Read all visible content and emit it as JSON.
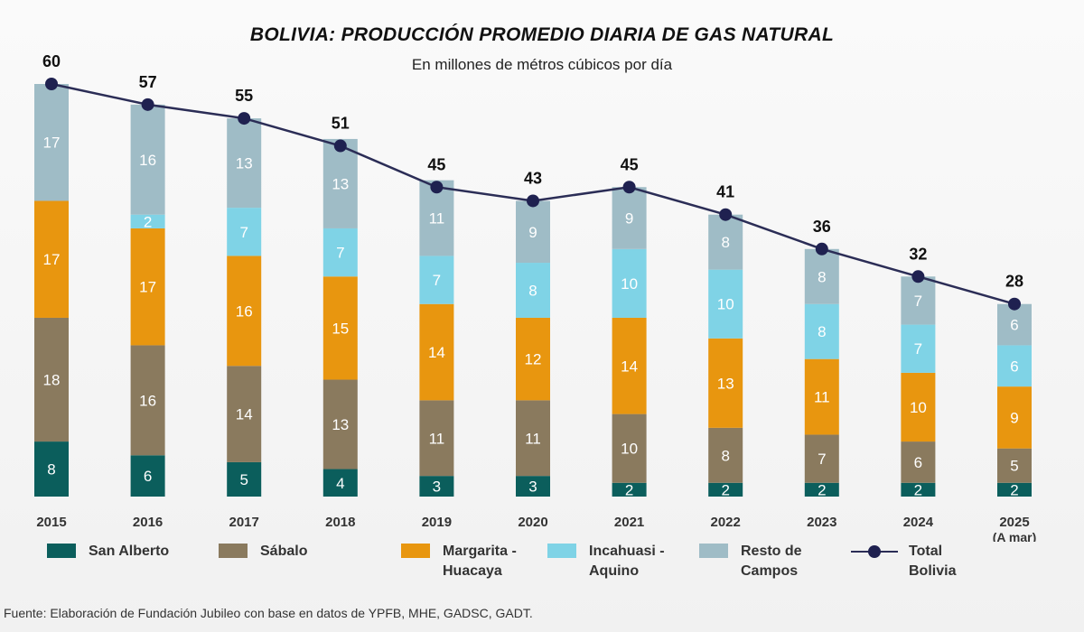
{
  "chart_data": {
    "type": "bar",
    "stacked": true,
    "title": "BOLIVIA: PRODUCCIÓN PROMEDIO DIARIA DE GAS NATURAL",
    "subtitle": "En millones de métros cúbicos por día",
    "categories": [
      "2015",
      "2016",
      "2017",
      "2018",
      "2019",
      "2020",
      "2021",
      "2022",
      "2023",
      "2024",
      "2025"
    ],
    "category_sublabels": [
      "",
      "",
      "",
      "",
      "",
      "",
      "",
      "",
      "",
      "",
      "(A mar)"
    ],
    "series": [
      {
        "name": "San Alberto",
        "color": "#0b5e5c",
        "values": [
          8,
          6,
          5,
          4,
          3,
          3,
          2,
          2,
          2,
          2,
          2
        ]
      },
      {
        "name": "Sábalo",
        "color": "#8a7a5e",
        "values": [
          18,
          16,
          14,
          13,
          11,
          11,
          10,
          8,
          7,
          6,
          5
        ]
      },
      {
        "name": "Margarita - Huacaya",
        "color": "#e8960f",
        "values": [
          17,
          17,
          16,
          15,
          14,
          12,
          14,
          13,
          11,
          10,
          9
        ]
      },
      {
        "name": "Incahuasi - Aquino",
        "color": "#7fd3e6",
        "values": [
          0,
          2,
          7,
          7,
          7,
          8,
          10,
          10,
          8,
          7,
          6
        ]
      },
      {
        "name": "Resto de Campos",
        "color": "#9fbcc6",
        "values": [
          17,
          16,
          13,
          13,
          11,
          9,
          9,
          8,
          8,
          7,
          6
        ]
      }
    ],
    "line_series": {
      "name": "Total Bolivia",
      "color": "#2b2d56",
      "values": [
        60,
        57,
        55,
        51,
        45,
        43,
        45,
        41,
        36,
        32,
        28
      ]
    },
    "ylim": [
      0,
      60
    ],
    "grid": false,
    "legend_position": "bottom"
  },
  "legend": [
    {
      "label": "San Alberto",
      "kind": "swatch",
      "color": "#0b5e5c"
    },
    {
      "label": "Sábalo",
      "kind": "swatch",
      "color": "#8a7a5e"
    },
    {
      "label": "Margarita -\nHuacaya",
      "kind": "swatch",
      "color": "#e8960f"
    },
    {
      "label": "Incahuasi -\nAquino",
      "kind": "swatch",
      "color": "#7fd3e6"
    },
    {
      "label": "Resto de\nCampos",
      "kind": "swatch",
      "color": "#9fbcc6"
    },
    {
      "label": "Total\nBolivia",
      "kind": "line",
      "color": "#2b2d56"
    }
  ],
  "source_note": "Fuente: Elaboración de Fundación Jubileo con base en datos de YPFB, MHE, GADSC, GADT."
}
